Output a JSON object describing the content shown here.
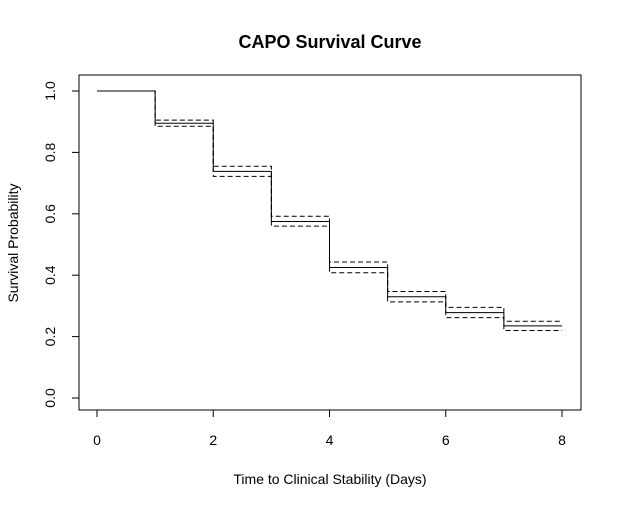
{
  "chart_data": {
    "type": "line",
    "subtype": "kaplan-meier-step",
    "title": "CAPO Survival Curve",
    "xlabel": "Time to Clinical Stability (Days)",
    "ylabel": "Survival Probability",
    "xlim": [
      0,
      8
    ],
    "ylim": [
      0,
      1
    ],
    "xticks": [
      "0",
      "2",
      "4",
      "6",
      "8"
    ],
    "yticks": [
      "0.0",
      "0.2",
      "0.4",
      "0.6",
      "0.8",
      "1.0"
    ],
    "grid": false,
    "legend": "none",
    "series": [
      {
        "line_style": "solid",
        "x": [
          0,
          1,
          2,
          3,
          4,
          5,
          6,
          7,
          8
        ],
        "y": [
          1.0,
          0.895,
          0.738,
          0.575,
          0.425,
          0.33,
          0.278,
          0.235,
          0.235
        ]
      },
      {
        "line_style": "dashed",
        "x": [
          0,
          1,
          2,
          3,
          4,
          5,
          6,
          7,
          8
        ],
        "y": [
          1.0,
          0.905,
          0.755,
          0.592,
          0.443,
          0.347,
          0.295,
          0.25,
          0.25
        ]
      },
      {
        "line_style": "dashed",
        "x": [
          0,
          1,
          2,
          3,
          4,
          5,
          6,
          7,
          8
        ],
        "y": [
          1.0,
          0.885,
          0.722,
          0.56,
          0.408,
          0.313,
          0.262,
          0.22,
          0.22
        ]
      }
    ]
  }
}
